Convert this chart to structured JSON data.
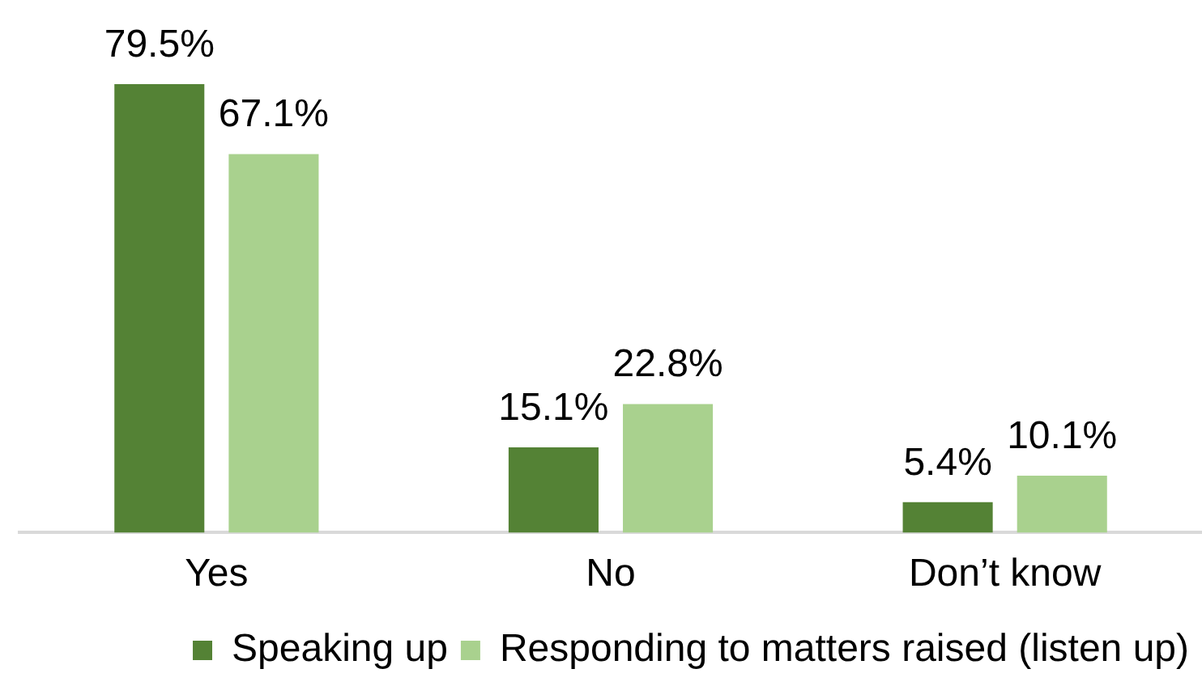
{
  "chart_data": {
    "type": "bar",
    "categories": [
      "Yes",
      "No",
      "Don’t know"
    ],
    "series": [
      {
        "name": "Speaking up",
        "color": "#548235",
        "values": [
          79.5,
          15.1,
          5.4
        ],
        "value_labels": [
          "79.5%",
          "15.1%",
          "5.4%"
        ]
      },
      {
        "name": "Responding to matters raised (listen up)",
        "color": "#a9d18e",
        "values": [
          67.1,
          22.8,
          10.1
        ],
        "value_labels": [
          "67.1%",
          "22.8%",
          "10.1%"
        ]
      }
    ],
    "legend": "bottom",
    "grid": false
  }
}
